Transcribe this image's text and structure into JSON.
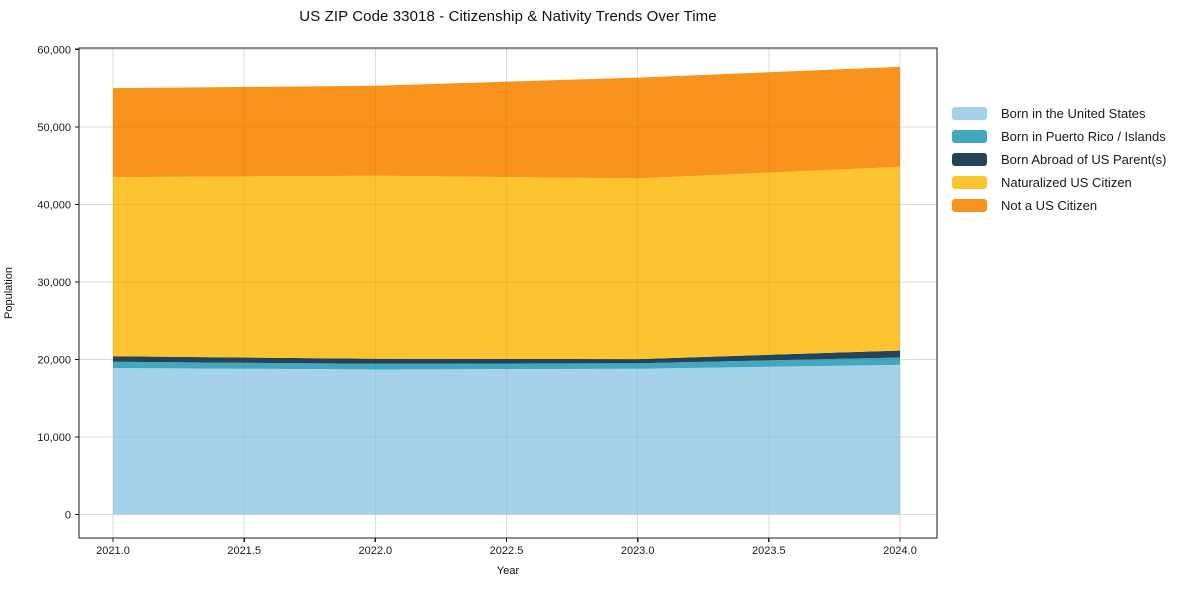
{
  "title": "US ZIP Code 33018 - Citizenship & Nativity Trends Over Time",
  "chart_data": {
    "type": "area",
    "stacked": true,
    "title": "US ZIP Code 33018 - Citizenship & Nativity Trends Over Time",
    "xlabel": "Year",
    "ylabel": "Population",
    "x": [
      2021,
      2022,
      2023,
      2024
    ],
    "series": [
      {
        "name": "Born in the United States",
        "color": "#a6d2e9",
        "values": [
          18900,
          18700,
          18800,
          19300
        ]
      },
      {
        "name": "Born in Puerto Rico / Islands",
        "color": "#42a8c0",
        "values": [
          800,
          750,
          700,
          950
        ]
      },
      {
        "name": "Born Abroad of US Parent(s)",
        "color": "#23455a",
        "values": [
          700,
          650,
          550,
          900
        ]
      },
      {
        "name": "Naturalized US Citizen",
        "color": "#fdc42f",
        "values": [
          23100,
          23600,
          23300,
          23700
        ]
      },
      {
        "name": "Not a US Citizen",
        "color": "#f8941d",
        "values": [
          11500,
          11600,
          13000,
          12900
        ]
      }
    ],
    "stack_totals": [
      55000,
      55300,
      56350,
      57750
    ],
    "xticks": [
      2021.0,
      2021.5,
      2022.0,
      2022.5,
      2023.0,
      2023.5,
      2024.0
    ],
    "yticks": [
      0,
      10000,
      20000,
      30000,
      40000,
      50000,
      60000
    ],
    "xlim": [
      2020.85,
      2024.15
    ],
    "ylim": [
      -3000,
      60200
    ],
    "grid": true,
    "legend_position": "right",
    "colors": {
      "grid": "#e7e7e7",
      "grid_overlay": "rgba(0,0,0,0.05)",
      "spine": "#1a1a1a",
      "tick_text": "#1a1a1a"
    }
  }
}
